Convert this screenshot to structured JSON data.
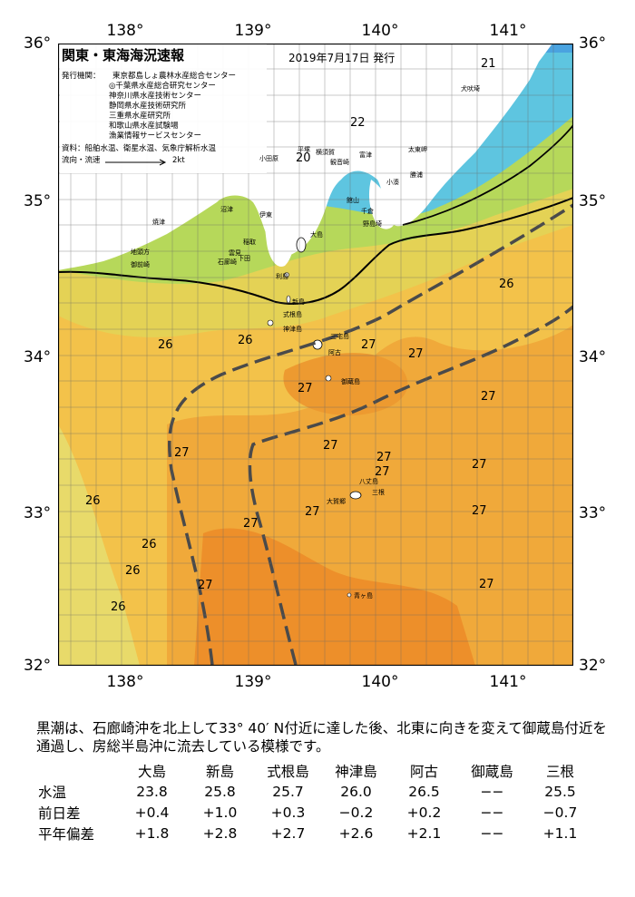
{
  "header": {
    "title": "関東・東海海況速報",
    "date": "2019年7月17日 発行",
    "issuers_label": "発行機関：",
    "issuers": [
      "東京都島しょ農林水産総合センター",
      "◎千葉県水産総合研究センター",
      "神奈川県水産技術センター",
      "静岡県水産技術研究所",
      "三重県水産研究所",
      "和歌山県水産試験場",
      "漁業情報サービスセンター"
    ],
    "sources": "資料：船舶水温、衛星水温、気象庁解析水温",
    "flow_label": "流向・流速",
    "flow_scale": "2kt"
  },
  "axes": {
    "lon_top": [
      "138°",
      "139°",
      "140°",
      "141°"
    ],
    "lon_bottom": [
      "138°",
      "139°",
      "140°",
      "141°"
    ],
    "lat_left": [
      "36°",
      "35°",
      "34°",
      "33°",
      "32°"
    ],
    "lat_right": [
      "36°",
      "35°",
      "34°",
      "33°",
      "32°"
    ]
  },
  "places": [
    {
      "id": "inubosaki",
      "text": "犬吠埼"
    },
    {
      "id": "taitomisaki",
      "text": "太東岬"
    },
    {
      "id": "katsuura",
      "text": "勝浦"
    },
    {
      "id": "kominato",
      "text": "小湊"
    },
    {
      "id": "futtsu",
      "text": "富津"
    },
    {
      "id": "kannonzaki",
      "text": "観音崎"
    },
    {
      "id": "yokosuka",
      "text": "横須賀"
    },
    {
      "id": "hiratsuka",
      "text": "平塚"
    },
    {
      "id": "odawara",
      "text": "小田原"
    },
    {
      "id": "tateyama",
      "text": "館山"
    },
    {
      "id": "chikura",
      "text": "千倉"
    },
    {
      "id": "nojimasaki",
      "text": "野島埼"
    },
    {
      "id": "oshima",
      "text": "大島"
    },
    {
      "id": "ito",
      "text": "伊東"
    },
    {
      "id": "numazu",
      "text": "沼津"
    },
    {
      "id": "yaizu",
      "text": "焼津"
    },
    {
      "id": "inatori",
      "text": "稲取"
    },
    {
      "id": "shimoda",
      "text": "下田"
    },
    {
      "id": "unshima",
      "text": "雲見"
    },
    {
      "id": "irozaki",
      "text": "石廊崎"
    },
    {
      "id": "omaezaki",
      "text": "御前崎"
    },
    {
      "id": "chikyuzaki",
      "text": "地頭方"
    },
    {
      "id": "toshima",
      "text": "利島"
    },
    {
      "id": "niijima",
      "text": "新島"
    },
    {
      "id": "shikinejima",
      "text": "式根島"
    },
    {
      "id": "kozushima",
      "text": "神津島"
    },
    {
      "id": "miyake",
      "text": "三宅島"
    },
    {
      "id": "ako",
      "text": "阿古"
    },
    {
      "id": "mikurajima",
      "text": "御蔵島"
    },
    {
      "id": "hachijojima",
      "text": "八丈島"
    },
    {
      "id": "okago",
      "text": "大賀郷"
    },
    {
      "id": "mitsune",
      "text": "三根"
    },
    {
      "id": "aogashima",
      "text": "青ヶ島"
    }
  ],
  "temperature_labels": [
    {
      "id": "t21",
      "text": "21"
    },
    {
      "id": "t22",
      "text": "22"
    },
    {
      "id": "t20",
      "text": "20"
    },
    {
      "id": "t26a",
      "text": "26"
    },
    {
      "id": "t26b",
      "text": "26"
    },
    {
      "id": "t26c",
      "text": "26"
    },
    {
      "id": "t26d",
      "text": "26"
    },
    {
      "id": "t26e",
      "text": "26"
    },
    {
      "id": "t26f",
      "text": "26"
    },
    {
      "id": "t26g",
      "text": "26"
    },
    {
      "id": "t27a",
      "text": "27"
    },
    {
      "id": "t27b",
      "text": "27"
    },
    {
      "id": "t27c",
      "text": "27"
    },
    {
      "id": "t27d",
      "text": "27"
    },
    {
      "id": "t27e",
      "text": "27"
    },
    {
      "id": "t27f",
      "text": "27"
    },
    {
      "id": "t27g",
      "text": "27"
    },
    {
      "id": "t27h",
      "text": "27"
    },
    {
      "id": "t27i",
      "text": "27"
    },
    {
      "id": "t27j",
      "text": "27"
    },
    {
      "id": "t27k",
      "text": "27"
    },
    {
      "id": "t27l",
      "text": "27"
    },
    {
      "id": "t27m",
      "text": "27"
    },
    {
      "id": "t27n",
      "text": "27"
    }
  ],
  "summary": "黒潮は、石廊崎沖を北上して33° 40′ N付近に達した後、北東に向きを変えて御蔵島付近を通過し、房総半島沖に流去している模様です。",
  "stations": {
    "names": [
      "大島",
      "新島",
      "式根島",
      "神津島",
      "阿古",
      "御蔵島",
      "三根"
    ],
    "rows": [
      {
        "label": "水温",
        "values": [
          "23.8",
          "25.8",
          "25.7",
          "26.0",
          "26.5",
          "−−",
          "25.5"
        ]
      },
      {
        "label": "前日差",
        "values": [
          "+0.4",
          "+1.0",
          "+0.3",
          "−0.2",
          "+0.2",
          "−−",
          "−0.7"
        ]
      },
      {
        "label": "平年偏差",
        "values": [
          "+1.8",
          "+2.8",
          "+2.7",
          "+2.6",
          "+2.1",
          "−−",
          "+1.1"
        ]
      }
    ]
  }
}
